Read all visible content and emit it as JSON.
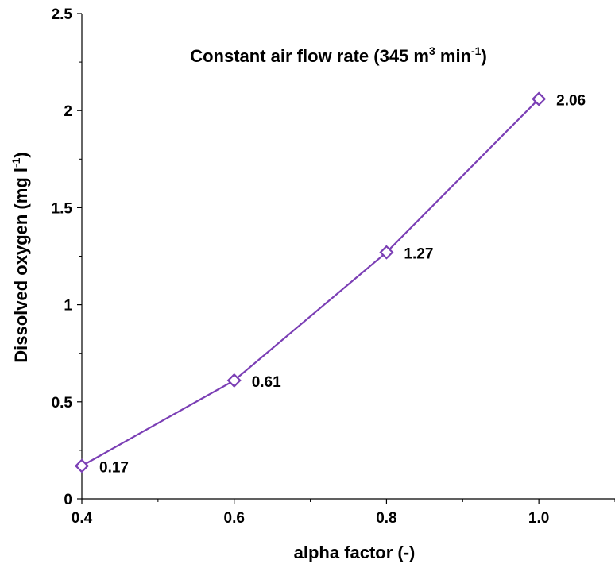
{
  "chart_data": {
    "type": "line",
    "title_parts": {
      "main": "Constant air flow rate (345 m",
      "sup1": "3",
      "mid": " min",
      "sup2": "-1",
      "end": ")"
    },
    "xlabel": "alpha factor (-)",
    "ylabel_parts": {
      "main": "Dissolved oxygen (mg l",
      "sup": "-1",
      "end": ")"
    },
    "xlim": [
      0.4,
      1.1
    ],
    "ylim": [
      0,
      2.5
    ],
    "x_ticks": [
      "0.4",
      "0.6",
      "0.8",
      "1.0"
    ],
    "y_ticks": [
      "0",
      "0.5",
      "1",
      "1.5",
      "2",
      "2.5"
    ],
    "grid": false,
    "series": [
      {
        "x": [
          0.4,
          0.6,
          0.8,
          1.0
        ],
        "y": [
          0.17,
          0.61,
          1.27,
          2.06
        ],
        "labels": [
          "0.17",
          "0.61",
          "1.27",
          "2.06"
        ],
        "color": "#7b3fb5",
        "marker": "diamond"
      }
    ]
  }
}
